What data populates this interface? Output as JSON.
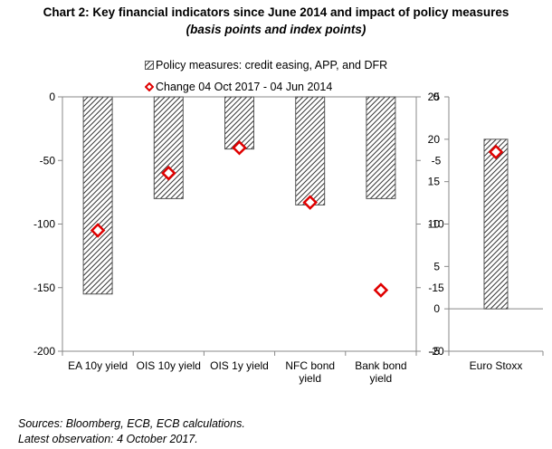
{
  "title": {
    "main": "Chart 2: Key financial indicators since June 2014  and impact of policy measures",
    "italic_part": "(basis points and index points)"
  },
  "legend": {
    "policy_label": "Policy measures: credit easing, APP, and DFR",
    "change_label": "Change 04 Oct 2017 - 04 Jun 2014"
  },
  "footer": {
    "line1": "Sources: Bloomberg, ECB, ECB calculations.",
    "line2": "Latest observation: 4 October 2017."
  },
  "colors": {
    "hatch": "#333333",
    "diamond": "#e00000",
    "axis": "#888888"
  },
  "chart_data": [
    {
      "type": "bar",
      "panel": "left",
      "categories": [
        "EA 10y yield",
        "OIS 10y yield",
        "OIS 1y yield",
        "NFC bond yield",
        "Bank bond yield"
      ],
      "category_lines": [
        [
          "EA 10y yield"
        ],
        [
          "OIS 10y yield"
        ],
        [
          "OIS 1y yield"
        ],
        [
          "NFC bond",
          "yield"
        ],
        [
          "Bank bond",
          "yield"
        ]
      ],
      "series": [
        {
          "name": "Policy measures: credit easing, APP, and DFR",
          "kind": "bar",
          "axis": "left",
          "values": [
            -155,
            -80,
            -41,
            -85,
            -80
          ]
        },
        {
          "name": "Change 04 Oct 2017 - 04 Jun 2014",
          "kind": "diamond",
          "axis": "left",
          "values": [
            -105,
            -60,
            -40,
            -83,
            -152
          ]
        }
      ],
      "y_left": {
        "ylim": [
          -200,
          0
        ],
        "ticks": [
          0,
          -50,
          -100,
          -150,
          -200
        ]
      },
      "y_right": {
        "ylim": [
          -20,
          0
        ],
        "ticks": [
          0,
          -5,
          -10,
          -15,
          -20
        ]
      },
      "grid": false
    },
    {
      "type": "bar",
      "panel": "right",
      "categories": [
        "Euro Stoxx"
      ],
      "series": [
        {
          "name": "Policy measures: credit easing, APP, and DFR",
          "kind": "bar",
          "values": [
            20
          ]
        },
        {
          "name": "Change 04 Oct 2017 - 04 Jun 2014",
          "kind": "diamond",
          "values": [
            18.5
          ]
        }
      ],
      "y_left": {
        "ylim": [
          -5,
          25
        ],
        "ticks": [
          25,
          20,
          15,
          10,
          5,
          0,
          -5
        ]
      },
      "grid": false
    }
  ]
}
